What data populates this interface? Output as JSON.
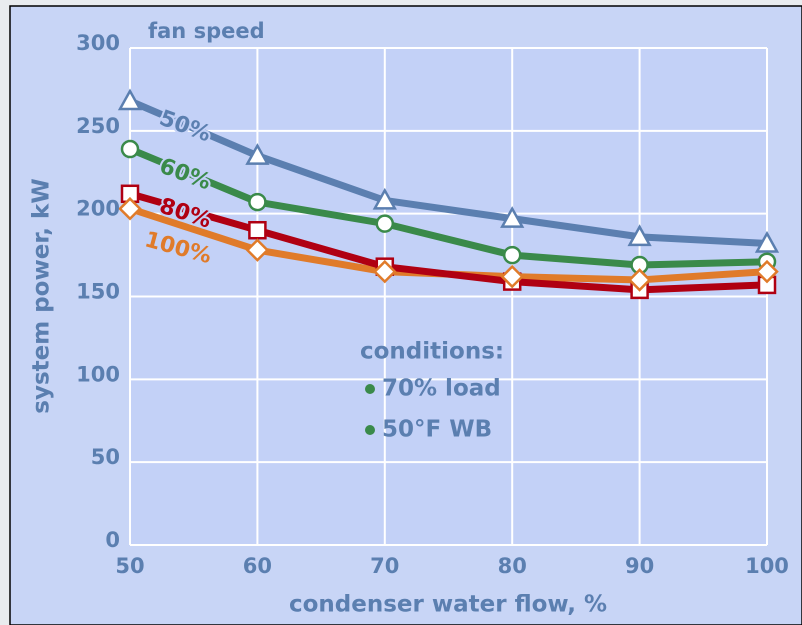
{
  "chart_data": {
    "type": "line",
    "title": "fan speed",
    "x_label": "condenser water flow, %",
    "y_label": "system power, kW",
    "x": [
      50,
      60,
      70,
      80,
      90,
      100
    ],
    "xlim": [
      50,
      100
    ],
    "xticks": [
      50,
      60,
      70,
      80,
      90,
      100
    ],
    "ylim": [
      0,
      300
    ],
    "yticks": [
      0,
      50,
      100,
      150,
      200,
      250,
      300
    ],
    "grid": true,
    "series": [
      {
        "name": "50%",
        "color": "#5b7fb0",
        "marker": "triangle",
        "values": [
          268,
          235,
          208,
          197,
          186,
          182
        ]
      },
      {
        "name": "60%",
        "color": "#3a8a4a",
        "marker": "circle",
        "values": [
          239,
          207,
          194,
          175,
          169,
          171
        ]
      },
      {
        "name": "80%",
        "color": "#b00012",
        "marker": "square",
        "values": [
          212,
          190,
          168,
          159,
          154,
          157
        ]
      },
      {
        "name": "100%",
        "color": "#e07b2a",
        "marker": "diamond",
        "values": [
          203,
          178,
          165,
          162,
          160,
          165
        ]
      }
    ],
    "annotation": {
      "title": "conditions:",
      "items": [
        "70% load",
        "50°F WB"
      ]
    }
  }
}
